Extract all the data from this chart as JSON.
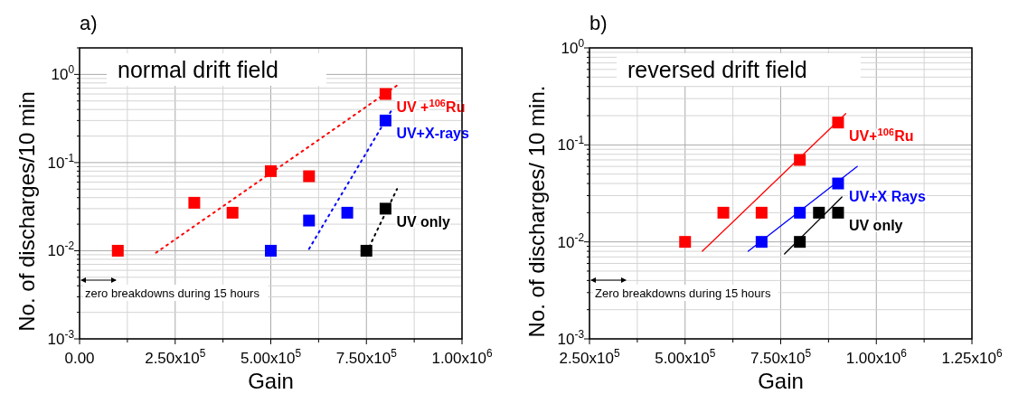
{
  "chart_data": [
    {
      "type": "scatter",
      "title": "a)",
      "xlabel": "Gain",
      "ylabel": "No. of discharges/10 min",
      "log": "y",
      "grid": true,
      "marker": "square",
      "xlim": [
        0,
        1000000
      ],
      "xticks": [
        {
          "value": 0,
          "label": "0.00"
        },
        {
          "value": 125000,
          "label": null
        },
        {
          "value": 250000,
          "label": "2.50x10$^{5}$"
        },
        {
          "value": 375000,
          "label": null
        },
        {
          "value": 500000,
          "label": "5.00x10$^{5}$"
        },
        {
          "value": 625000,
          "label": null
        },
        {
          "value": 750000,
          "label": "7.50x10$^{5}$"
        },
        {
          "value": 875000,
          "label": null
        },
        {
          "value": 1000000,
          "label": "1.00x10$^{6}$"
        }
      ],
      "ylim": [
        0.001,
        2
      ],
      "yticks": [
        {
          "value": 0.001,
          "label": "10$^{-3}$"
        },
        {
          "value": 0.002,
          "label": null
        },
        {
          "value": 0.003,
          "label": null
        },
        {
          "value": 0.004,
          "label": null
        },
        {
          "value": 0.005,
          "label": null
        },
        {
          "value": 0.006,
          "label": null
        },
        {
          "value": 0.007,
          "label": null
        },
        {
          "value": 0.008,
          "label": null
        },
        {
          "value": 0.009,
          "label": null
        },
        {
          "value": 0.01,
          "label": "10$^{-2}$"
        },
        {
          "value": 0.02,
          "label": null
        },
        {
          "value": 0.03,
          "label": null
        },
        {
          "value": 0.04,
          "label": null
        },
        {
          "value": 0.05,
          "label": null
        },
        {
          "value": 0.06,
          "label": null
        },
        {
          "value": 0.07,
          "label": null
        },
        {
          "value": 0.08,
          "label": null
        },
        {
          "value": 0.09,
          "label": null
        },
        {
          "value": 0.1,
          "label": "10$^{-1}$"
        },
        {
          "value": 0.2,
          "label": null
        },
        {
          "value": 0.3,
          "label": null
        },
        {
          "value": 0.4,
          "label": null
        },
        {
          "value": 0.5,
          "label": null
        },
        {
          "value": 0.6,
          "label": null
        },
        {
          "value": 0.7,
          "label": null
        },
        {
          "value": 0.8,
          "label": null
        },
        {
          "value": 0.9,
          "label": null
        },
        {
          "value": 1,
          "label": "10$^{0}$"
        },
        {
          "value": 2,
          "label": null
        }
      ],
      "annotations": [
        "normal drift field",
        "zero breakdowns during 15 hours"
      ],
      "series": [
        {
          "name": "UV +$^{106}$Ru",
          "color": "#ff0000",
          "x": [
            100000,
            300000,
            400000,
            500000,
            600000,
            800000
          ],
          "values": [
            0.01,
            0.035,
            0.027,
            0.08,
            0.07,
            0.6
          ]
        },
        {
          "name": "UV+X-rays",
          "color": "#0000ff",
          "x": [
            500000,
            600000,
            700000,
            800000
          ],
          "values": [
            0.01,
            0.022,
            0.027,
            0.3
          ]
        },
        {
          "name": "UV only",
          "color": "#000000",
          "x": [
            750000,
            800000
          ],
          "values": [
            0.01,
            0.03
          ]
        },
        {
          "type": "line",
          "marker": "none",
          "color": "#ff0000",
          "line_style": "dotted",
          "x": [
            200000,
            830000
          ],
          "values": [
            0.0095,
            0.75
          ]
        },
        {
          "type": "line",
          "marker": "none",
          "color": "#0000ff",
          "line_style": "dotted",
          "x": [
            600000,
            820000
          ],
          "values": [
            0.0105,
            0.42
          ]
        },
        {
          "type": "line",
          "marker": "none",
          "color": "#000000",
          "line_style": "dotted",
          "x": [
            750000,
            830000
          ],
          "values": [
            0.0095,
            0.05
          ]
        }
      ]
    },
    {
      "type": "scatter",
      "title": "b)",
      "xlabel": "Gain",
      "ylabel": "No. of discharges/ 10 min.",
      "log": "y",
      "grid": true,
      "marker": "square",
      "xlim": [
        250000,
        1250000
      ],
      "xticks": [
        {
          "value": 250000,
          "label": "2.50x10$^{5}$"
        },
        {
          "value": 375000,
          "label": null
        },
        {
          "value": 500000,
          "label": "5.00x10$^{5}$"
        },
        {
          "value": 625000,
          "label": null
        },
        {
          "value": 750000,
          "label": "7.50x10$^{5}$"
        },
        {
          "value": 875000,
          "label": null
        },
        {
          "value": 1000000,
          "label": "1.00x10$^{6}$"
        },
        {
          "value": 1125000,
          "label": null
        },
        {
          "value": 1250000,
          "label": "1.25x10$^{6}$"
        }
      ],
      "ylim": [
        0.001,
        1
      ],
      "yticks": [
        {
          "value": 0.001,
          "label": "10$^{-3}$"
        },
        {
          "value": 0.002,
          "label": null
        },
        {
          "value": 0.003,
          "label": null
        },
        {
          "value": 0.004,
          "label": null
        },
        {
          "value": 0.005,
          "label": null
        },
        {
          "value": 0.006,
          "label": null
        },
        {
          "value": 0.007,
          "label": null
        },
        {
          "value": 0.008,
          "label": null
        },
        {
          "value": 0.009,
          "label": null
        },
        {
          "value": 0.01,
          "label": "10$^{-2}$"
        },
        {
          "value": 0.02,
          "label": null
        },
        {
          "value": 0.03,
          "label": null
        },
        {
          "value": 0.04,
          "label": null
        },
        {
          "value": 0.05,
          "label": null
        },
        {
          "value": 0.06,
          "label": null
        },
        {
          "value": 0.07,
          "label": null
        },
        {
          "value": 0.08,
          "label": null
        },
        {
          "value": 0.09,
          "label": null
        },
        {
          "value": 0.1,
          "label": "10$^{-1}$"
        },
        {
          "value": 0.2,
          "label": null
        },
        {
          "value": 0.3,
          "label": null
        },
        {
          "value": 0.4,
          "label": null
        },
        {
          "value": 0.5,
          "label": null
        },
        {
          "value": 0.6,
          "label": null
        },
        {
          "value": 0.7,
          "label": null
        },
        {
          "value": 0.8,
          "label": null
        },
        {
          "value": 0.9,
          "label": null
        },
        {
          "value": 1,
          "label": "10$^{0}$"
        }
      ],
      "annotations": [
        "reversed drift field",
        "Zero breakdowns during 15 hours"
      ],
      "series": [
        {
          "name": "UV+$^{106}$Ru",
          "color": "#ff0000",
          "x": [
            500000,
            600000,
            700000,
            800000,
            900000
          ],
          "values": [
            0.01,
            0.02,
            0.02,
            0.07,
            0.17
          ]
        },
        {
          "name": "UV+X Rays",
          "color": "#0000ff",
          "x": [
            700000,
            800000,
            900000
          ],
          "values": [
            0.01,
            0.02,
            0.04
          ]
        },
        {
          "name": "UV only",
          "color": "#000000",
          "x": [
            800000,
            850000,
            900000
          ],
          "values": [
            0.01,
            0.02,
            0.02
          ]
        },
        {
          "type": "line",
          "marker": "none",
          "color": "#ff0000",
          "line_style": "solid",
          "x": [
            545000,
            920000
          ],
          "values": [
            0.008,
            0.21
          ]
        },
        {
          "type": "line",
          "marker": "none",
          "color": "#0000ff",
          "line_style": "solid",
          "x": [
            665000,
            950000
          ],
          "values": [
            0.008,
            0.06
          ]
        },
        {
          "type": "line",
          "marker": "none",
          "color": "#000000",
          "line_style": "solid",
          "x": [
            760000,
            910000
          ],
          "values": [
            0.0075,
            0.029
          ]
        }
      ]
    }
  ]
}
